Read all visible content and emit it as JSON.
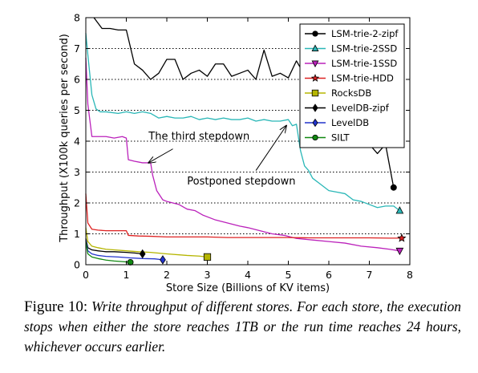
{
  "chart_data": {
    "type": "line",
    "title": "",
    "xlabel": "Store Size (Billions of KV items)",
    "ylabel": "Throughput (X100k queries per second)",
    "xlim": [
      0,
      8
    ],
    "ylim": [
      0,
      8
    ],
    "xticks": [
      "0",
      "1",
      "2",
      "3",
      "4",
      "5",
      "6",
      "7",
      "8"
    ],
    "yticks": [
      "0",
      "1",
      "2",
      "3",
      "4",
      "5",
      "6",
      "7",
      "8"
    ],
    "grid": "horizontal dotted",
    "legend_position": "top-right",
    "series": [
      {
        "name": "LSM-trie-2-zipf",
        "color": "#000000",
        "marker": "circle",
        "points": [
          [
            0.2,
            8.0
          ],
          [
            0.4,
            7.65
          ],
          [
            0.6,
            7.65
          ],
          [
            0.8,
            7.6
          ],
          [
            1.0,
            7.6
          ],
          [
            1.2,
            6.5
          ],
          [
            1.4,
            6.3
          ],
          [
            1.6,
            6.0
          ],
          [
            1.8,
            6.2
          ],
          [
            2.0,
            6.65
          ],
          [
            2.2,
            6.65
          ],
          [
            2.4,
            6.0
          ],
          [
            2.6,
            6.2
          ],
          [
            2.8,
            6.3
          ],
          [
            3.0,
            6.1
          ],
          [
            3.2,
            6.5
          ],
          [
            3.4,
            6.5
          ],
          [
            3.6,
            6.1
          ],
          [
            3.8,
            6.2
          ],
          [
            4.0,
            6.3
          ],
          [
            4.2,
            6.0
          ],
          [
            4.4,
            6.95
          ],
          [
            4.6,
            6.1
          ],
          [
            4.8,
            6.2
          ],
          [
            5.0,
            6.05
          ],
          [
            5.2,
            6.6
          ],
          [
            5.4,
            6.15
          ],
          [
            5.6,
            6.6
          ],
          [
            5.8,
            6.6
          ],
          [
            6.0,
            6.0
          ],
          [
            6.2,
            5.5
          ],
          [
            6.4,
            5.0
          ],
          [
            6.6,
            4.6
          ],
          [
            6.8,
            4.3
          ],
          [
            7.0,
            3.9
          ],
          [
            7.2,
            3.6
          ],
          [
            7.4,
            3.9
          ],
          [
            7.6,
            2.5
          ]
        ]
      },
      {
        "name": "LSM-trie-2SSD",
        "color": "#2ab7b7",
        "marker": "triangle-up",
        "points": [
          [
            0.0,
            7.5
          ],
          [
            0.05,
            6.8
          ],
          [
            0.15,
            5.5
          ],
          [
            0.25,
            5.05
          ],
          [
            0.35,
            4.95
          ],
          [
            0.5,
            4.95
          ],
          [
            0.8,
            4.9
          ],
          [
            1.0,
            4.95
          ],
          [
            1.2,
            4.9
          ],
          [
            1.4,
            4.95
          ],
          [
            1.6,
            4.9
          ],
          [
            1.8,
            4.75
          ],
          [
            2.0,
            4.8
          ],
          [
            2.2,
            4.75
          ],
          [
            2.4,
            4.75
          ],
          [
            2.6,
            4.8
          ],
          [
            2.8,
            4.7
          ],
          [
            3.0,
            4.75
          ],
          [
            3.2,
            4.7
          ],
          [
            3.4,
            4.75
          ],
          [
            3.6,
            4.7
          ],
          [
            3.8,
            4.7
          ],
          [
            4.0,
            4.75
          ],
          [
            4.2,
            4.65
          ],
          [
            4.4,
            4.7
          ],
          [
            4.6,
            4.65
          ],
          [
            4.8,
            4.65
          ],
          [
            5.0,
            4.7
          ],
          [
            5.1,
            4.5
          ],
          [
            5.2,
            4.55
          ],
          [
            5.3,
            3.7
          ],
          [
            5.4,
            3.2
          ],
          [
            5.5,
            3.05
          ],
          [
            5.6,
            2.8
          ],
          [
            5.8,
            2.6
          ],
          [
            6.0,
            2.4
          ],
          [
            6.2,
            2.35
          ],
          [
            6.4,
            2.3
          ],
          [
            6.6,
            2.1
          ],
          [
            6.8,
            2.05
          ],
          [
            7.0,
            1.95
          ],
          [
            7.2,
            1.85
          ],
          [
            7.4,
            1.9
          ],
          [
            7.6,
            1.9
          ],
          [
            7.75,
            1.75
          ]
        ]
      },
      {
        "name": "LSM-trie-1SSD",
        "color": "#bb22bb",
        "marker": "triangle-down",
        "points": [
          [
            0.0,
            6.7
          ],
          [
            0.05,
            5.2
          ],
          [
            0.15,
            4.15
          ],
          [
            0.3,
            4.15
          ],
          [
            0.5,
            4.15
          ],
          [
            0.7,
            4.1
          ],
          [
            0.9,
            4.15
          ],
          [
            1.0,
            4.1
          ],
          [
            1.05,
            3.4
          ],
          [
            1.2,
            3.35
          ],
          [
            1.4,
            3.3
          ],
          [
            1.6,
            3.3
          ],
          [
            1.65,
            2.9
          ],
          [
            1.75,
            2.4
          ],
          [
            1.9,
            2.1
          ],
          [
            2.0,
            2.05
          ],
          [
            2.3,
            1.95
          ],
          [
            2.5,
            1.8
          ],
          [
            2.7,
            1.75
          ],
          [
            2.9,
            1.6
          ],
          [
            3.2,
            1.45
          ],
          [
            3.5,
            1.35
          ],
          [
            3.8,
            1.25
          ],
          [
            4.0,
            1.2
          ],
          [
            4.3,
            1.1
          ],
          [
            4.6,
            1.0
          ],
          [
            4.9,
            0.95
          ],
          [
            5.2,
            0.85
          ],
          [
            5.6,
            0.8
          ],
          [
            6.0,
            0.75
          ],
          [
            6.4,
            0.7
          ],
          [
            6.8,
            0.6
          ],
          [
            7.2,
            0.55
          ],
          [
            7.5,
            0.5
          ],
          [
            7.75,
            0.45
          ]
        ]
      },
      {
        "name": "LSM-trie-HDD",
        "color": "#dd2222",
        "marker": "star",
        "points": [
          [
            0.0,
            2.3
          ],
          [
            0.05,
            1.35
          ],
          [
            0.15,
            1.15
          ],
          [
            0.3,
            1.12
          ],
          [
            0.5,
            1.1
          ],
          [
            0.8,
            1.1
          ],
          [
            1.0,
            1.1
          ],
          [
            1.05,
            0.95
          ],
          [
            1.3,
            0.93
          ],
          [
            1.6,
            0.92
          ],
          [
            2.0,
            0.9
          ],
          [
            2.5,
            0.9
          ],
          [
            3.0,
            0.9
          ],
          [
            3.5,
            0.88
          ],
          [
            4.0,
            0.88
          ],
          [
            4.5,
            0.88
          ],
          [
            5.0,
            0.88
          ],
          [
            5.5,
            0.87
          ],
          [
            6.0,
            0.87
          ],
          [
            6.5,
            0.87
          ],
          [
            7.0,
            0.87
          ],
          [
            7.5,
            0.86
          ],
          [
            7.8,
            0.86
          ]
        ]
      },
      {
        "name": "RocksDB",
        "color": "#b5b500",
        "marker": "square",
        "points": [
          [
            0.0,
            1.2
          ],
          [
            0.05,
            0.75
          ],
          [
            0.15,
            0.6
          ],
          [
            0.3,
            0.55
          ],
          [
            0.5,
            0.5
          ],
          [
            0.7,
            0.48
          ],
          [
            1.0,
            0.45
          ],
          [
            1.3,
            0.42
          ],
          [
            1.6,
            0.4
          ],
          [
            2.0,
            0.35
          ],
          [
            2.5,
            0.3
          ],
          [
            2.8,
            0.28
          ],
          [
            3.0,
            0.25
          ]
        ]
      },
      {
        "name": "LevelDB-zipf",
        "color": "#000000",
        "marker": "diamond",
        "points": [
          [
            0.0,
            0.85
          ],
          [
            0.05,
            0.55
          ],
          [
            0.15,
            0.48
          ],
          [
            0.3,
            0.45
          ],
          [
            0.5,
            0.42
          ],
          [
            0.7,
            0.42
          ],
          [
            1.0,
            0.4
          ],
          [
            1.2,
            0.38
          ],
          [
            1.4,
            0.35
          ]
        ]
      },
      {
        "name": "LevelDB",
        "color": "#2233cc",
        "marker": "diamond",
        "points": [
          [
            0.0,
            0.8
          ],
          [
            0.05,
            0.45
          ],
          [
            0.15,
            0.35
          ],
          [
            0.3,
            0.3
          ],
          [
            0.5,
            0.27
          ],
          [
            0.8,
            0.25
          ],
          [
            1.1,
            0.22
          ],
          [
            1.4,
            0.2
          ],
          [
            1.7,
            0.19
          ],
          [
            1.9,
            0.16
          ]
        ]
      },
      {
        "name": "SILT",
        "color": "#118811",
        "marker": "circle",
        "points": [
          [
            0.0,
            0.75
          ],
          [
            0.05,
            0.35
          ],
          [
            0.15,
            0.25
          ],
          [
            0.3,
            0.2
          ],
          [
            0.5,
            0.15
          ],
          [
            0.7,
            0.12
          ],
          [
            0.9,
            0.1
          ],
          [
            1.1,
            0.08
          ]
        ]
      }
    ],
    "annotations": [
      {
        "text": "The third stepdown",
        "text_at": [
          1.55,
          4.05
        ],
        "arrow_from": [
          2.15,
          3.75
        ],
        "arrow_to": [
          1.55,
          3.3
        ]
      },
      {
        "text": "Postponed stepdown",
        "text_at": [
          2.5,
          2.6
        ],
        "arrow_from": [
          4.2,
          3.05
        ],
        "arrow_to": [
          4.95,
          4.5
        ]
      }
    ]
  },
  "caption": {
    "label": "Figure 10:",
    "text": "Write throughput of different stores. For each store, the execution stops when either the store reaches 1TB or the run time reaches 24 hours, whichever occurs earlier."
  }
}
